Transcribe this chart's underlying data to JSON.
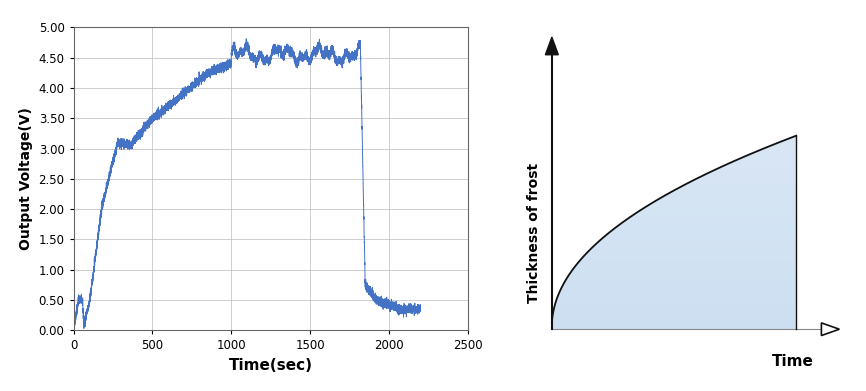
{
  "left_chart": {
    "xlabel": "Time(sec)",
    "ylabel": "Output Voltage(V)",
    "xlim": [
      0,
      2500
    ],
    "ylim": [
      0.0,
      5.0
    ],
    "yticks": [
      0.0,
      0.5,
      1.0,
      1.5,
      2.0,
      2.5,
      3.0,
      3.5,
      4.0,
      4.5,
      5.0
    ],
    "xticks": [
      0,
      500,
      1000,
      1500,
      2000,
      2500
    ],
    "line_color": "#4472C4",
    "grid_color": "#BBBBBB",
    "bg_color": "#FFFFFF"
  },
  "right_chart": {
    "xlabel": "Time",
    "ylabel": "Thickness of frost",
    "fill_color": "#C8DCF0",
    "line_color": "#111111",
    "bg_color": "#FFFFFF",
    "arrow_color": "#111111"
  }
}
